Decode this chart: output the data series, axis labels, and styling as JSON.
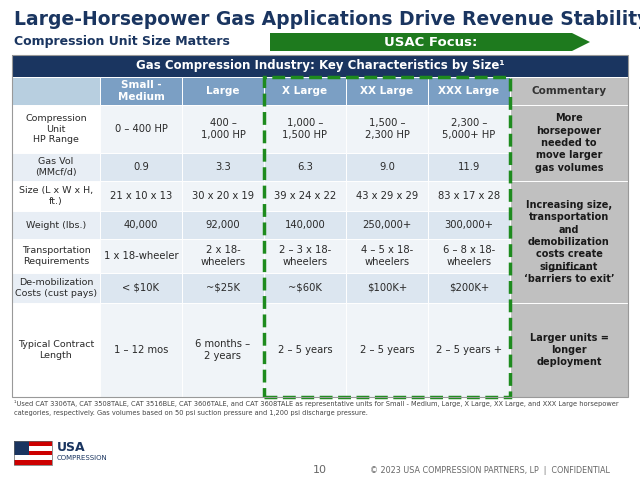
{
  "title": "Large-Horsepower Gas Applications Drive Revenue Stability",
  "subtitle_left": "Compression Unit Size Matters",
  "subtitle_arrow": "USAC Focus:",
  "table_header": "Gas Compression Industry: Key Characteristics by Size¹",
  "col_headers": [
    "",
    "Small -\nMedium",
    "Large",
    "X Large",
    "XX Large",
    "XXX Large",
    "Commentary"
  ],
  "rows": [
    [
      "Compression\nUnit\nHP Range",
      "0 – 400 HP",
      "400 –\n1,000 HP",
      "1,000 –\n1,500 HP",
      "1,500 –\n2,300 HP",
      "2,300 –\n5,000+ HP",
      "More\nhorsepower\nneeded to\nmove larger\ngas volumes"
    ],
    [
      "Gas Vol\n(MMcf/d)",
      "0.9",
      "3.3",
      "6.3",
      "9.0",
      "11.9",
      ""
    ],
    [
      "Size (L x W x H,\nft.)",
      "21 x 10 x 13",
      "30 x 20 x 19",
      "39 x 24 x 22",
      "43 x 29 x 29",
      "83 x 17 x 28",
      "Increasing size,\ntransportation\nand\ndemobilization\ncosts create\nsignificant\n‘barriers to exit’"
    ],
    [
      "Weight (lbs.)",
      "40,000",
      "92,000",
      "140,000",
      "250,000+",
      "300,000+",
      ""
    ],
    [
      "Transportation\nRequirements",
      "1 x 18-wheeler",
      "2 x 18-\nwheelers",
      "2 – 3 x 18-\nwheelers",
      "4 – 5 x 18-\nwheelers",
      "6 – 8 x 18-\nwheelers",
      ""
    ],
    [
      "De-mobilization\nCosts (cust pays)",
      "< $10K",
      "~$25K",
      "~$60K",
      "$100K+",
      "$200K+",
      ""
    ],
    [
      "Typical Contract\nLength",
      "1 – 12 mos",
      "6 months –\n2 years",
      "2 – 5 years",
      "2 – 5 years",
      "2 – 5 years +",
      "Larger units =\nlonger\ndeployment"
    ]
  ],
  "commentary_spans": [
    {
      "start": 0,
      "end": 1,
      "text": "More\nhorsepower\nneeded to\nmove larger\ngas volumes"
    },
    {
      "start": 2,
      "end": 5,
      "text": "Increasing size,\ntransportation\nand\ndemobilization\ncosts create\nsignificant\n‘barriers to exit’"
    },
    {
      "start": 6,
      "end": 6,
      "text": "Larger units =\nlonger\ndeployment"
    }
  ],
  "footnote": "¹Used CAT 3306TA, CAT 3508TALE, CAT 3516BLE, CAT 3606TALE, and CAT 3608TALE as representative units for Small - Medium, Large, X Large, XX Large, and XXX Large horsepower categories, respectively. Gas volumes based on 50 psi suction pressure and 1,200 psi discharge pressure.",
  "page_number": "10",
  "copyright": "© 2023 USA COMPRESSION PARTNERS, LP  |  CONFIDENTIAL",
  "header_bg": "#1a3560",
  "header_text": "#ffffff",
  "col_header_bg": "#7b9fc4",
  "col_header_text": "#ffffff",
  "row_label_dark_text": "#333333",
  "cell_bg_odd": "#dce6f0",
  "cell_bg_even": "#f0f4f8",
  "commentary_bg": "#c0c0c0",
  "commentary_text": "#1a1a1a",
  "dashed_box_color": "#1e8b1e",
  "arrow_color": "#1e7a1e",
  "title_color": "#1a3560",
  "subtitle_left_color": "#1a3560",
  "arrow_text_color": "#ffffff",
  "bg_color": "#ffffff"
}
